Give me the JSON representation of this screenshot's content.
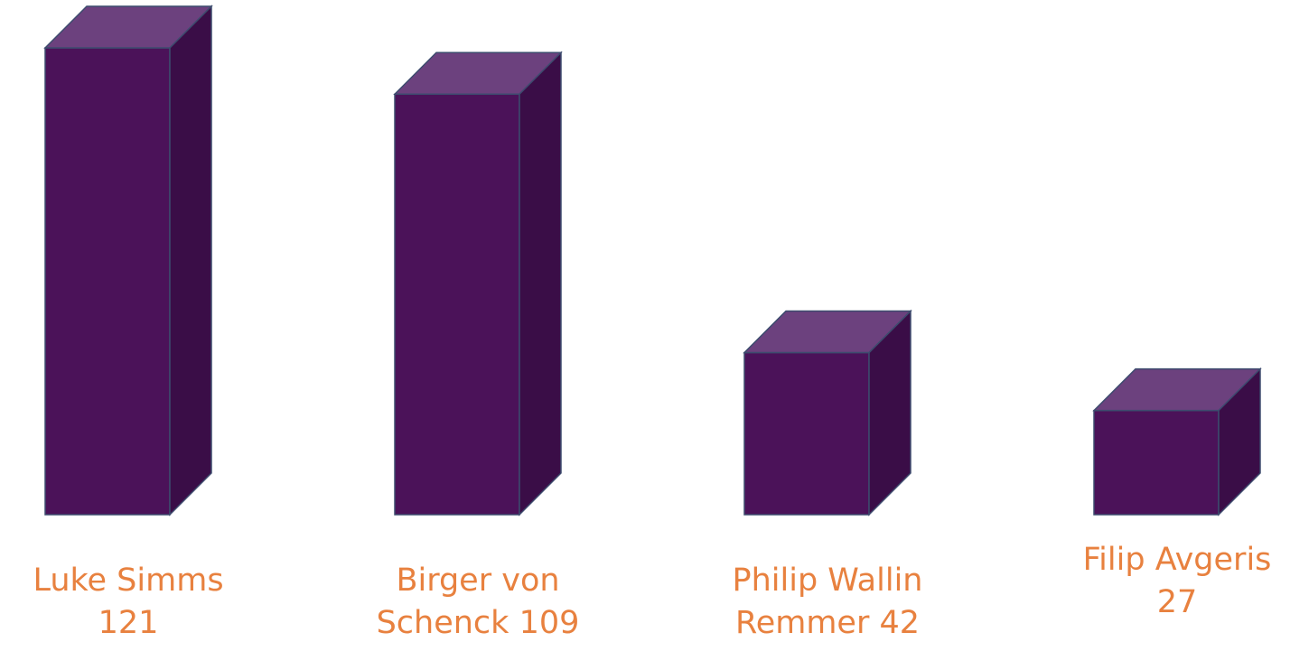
{
  "chart_data": {
    "type": "bar3d",
    "categories": [
      "Luke Simms",
      "Birger von Schenck",
      "Philip Wallin Remmer",
      "Filip Avgeris"
    ],
    "values": [
      121,
      109,
      42,
      27
    ],
    "color": "#4b1259"
  }
}
